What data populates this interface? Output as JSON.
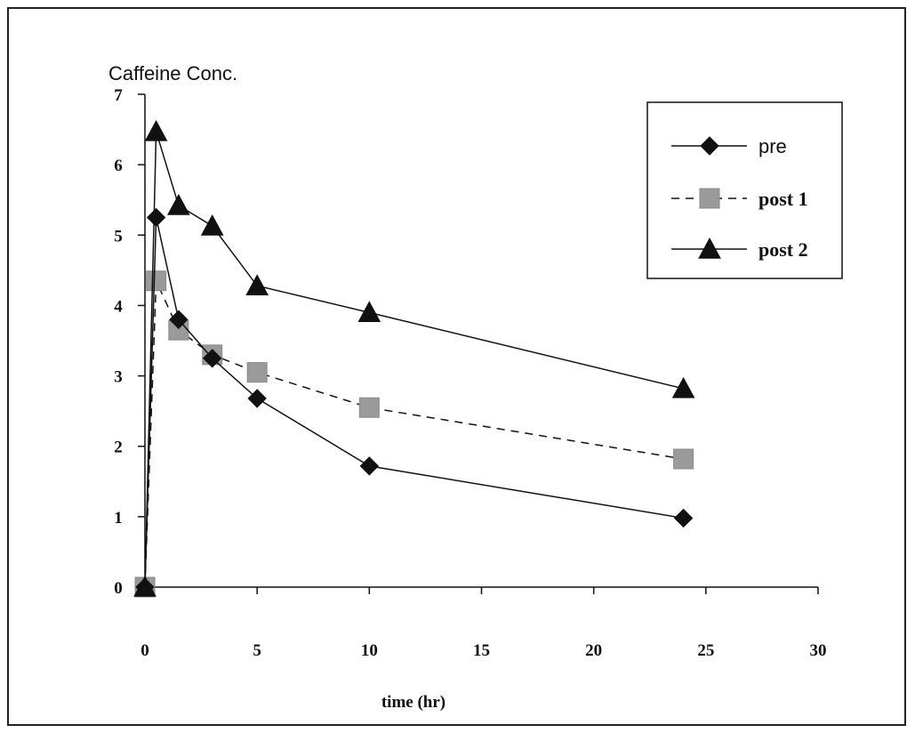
{
  "chart_data": {
    "type": "line",
    "ylabel": "Caffeine Conc.",
    "xlabel": "time (hr)",
    "xlim": [
      0,
      30
    ],
    "ylim": [
      0,
      7
    ],
    "x_ticks": [
      0,
      5,
      10,
      15,
      20,
      25,
      30
    ],
    "y_ticks": [
      0,
      1,
      2,
      3,
      4,
      5,
      6,
      7
    ],
    "grid": false,
    "legend_position": "top-right",
    "x": [
      0,
      0.5,
      1.5,
      3,
      5,
      10,
      24
    ],
    "series": [
      {
        "name": "pre",
        "values": [
          0,
          5.25,
          3.8,
          3.25,
          2.68,
          1.72,
          0.98
        ],
        "marker": "diamond",
        "line": "solid",
        "color": "#111111"
      },
      {
        "name": "post 1",
        "values": [
          0,
          4.35,
          3.65,
          3.3,
          3.05,
          2.55,
          1.82
        ],
        "marker": "square",
        "line": "dashed",
        "color": "#9a9a9a"
      },
      {
        "name": "post 2",
        "values": [
          0,
          6.47,
          5.42,
          5.13,
          4.28,
          3.9,
          2.82
        ],
        "marker": "triangle",
        "line": "solid",
        "color": "#111111"
      }
    ]
  }
}
